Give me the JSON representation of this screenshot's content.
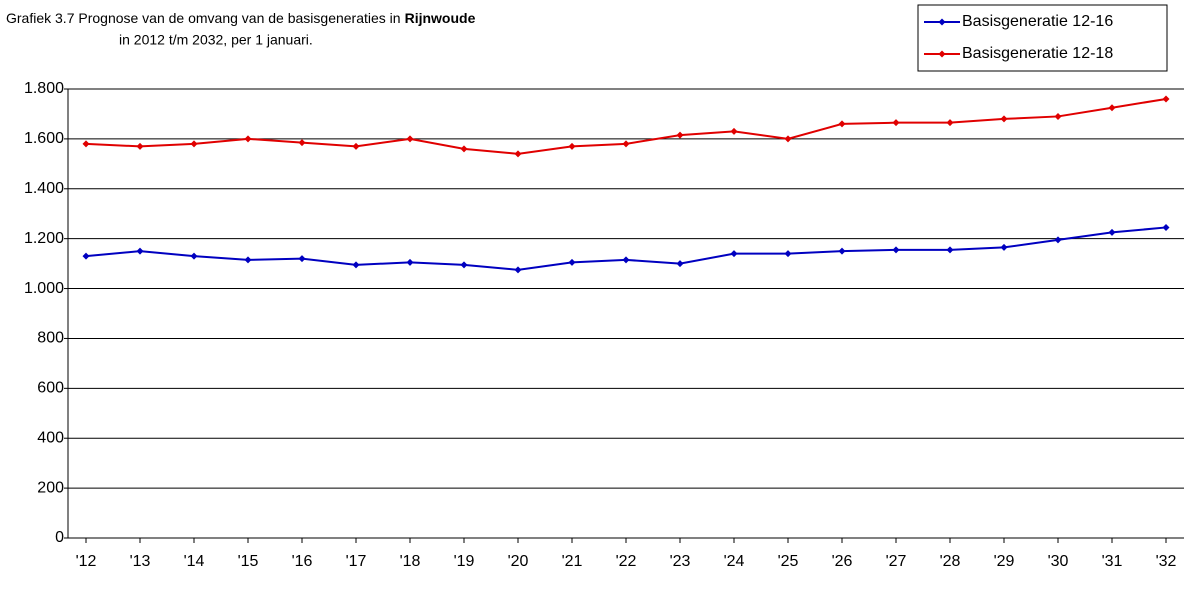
{
  "chart_data": {
    "type": "line",
    "title_prefix": "Grafiek 3.7 Prognose van de omvang van de basisgeneraties in",
    "title_bold": "Rijnwoude",
    "title_line2": "in 2012 t/m 2032, per 1 januari.",
    "categories": [
      "'12",
      "'13",
      "'14",
      "'15",
      "'16",
      "'17",
      "'18",
      "'19",
      "'20",
      "'21",
      "'22",
      "'23",
      "'24",
      "'25",
      "'26",
      "'27",
      "'28",
      "'29",
      "'30",
      "'31",
      "'32"
    ],
    "series": [
      {
        "name": "Basisgeneratie 12-16",
        "color": "#0000c0",
        "values": [
          1130,
          1150,
          1130,
          1115,
          1120,
          1095,
          1105,
          1095,
          1075,
          1105,
          1115,
          1100,
          1140,
          1140,
          1150,
          1155,
          1155,
          1165,
          1195,
          1225,
          1245
        ]
      },
      {
        "name": "Basisgeneratie 12-18",
        "color": "#e00000",
        "values": [
          1580,
          1570,
          1580,
          1600,
          1585,
          1570,
          1600,
          1560,
          1540,
          1570,
          1580,
          1615,
          1630,
          1600,
          1660,
          1665,
          1665,
          1680,
          1690,
          1725,
          1760
        ]
      }
    ],
    "ylim": [
      0,
      1800
    ],
    "yticks": [
      0,
      200,
      400,
      600,
      800,
      {
        "value": 1000,
        "label": "1.000"
      },
      {
        "value": 1200,
        "label": "1.200"
      },
      {
        "value": 1400,
        "label": "1.400"
      },
      {
        "value": 1600,
        "label": "1.600"
      },
      {
        "value": 1800,
        "label": "1.800"
      }
    ],
    "grid": true,
    "legend": "top-right"
  }
}
